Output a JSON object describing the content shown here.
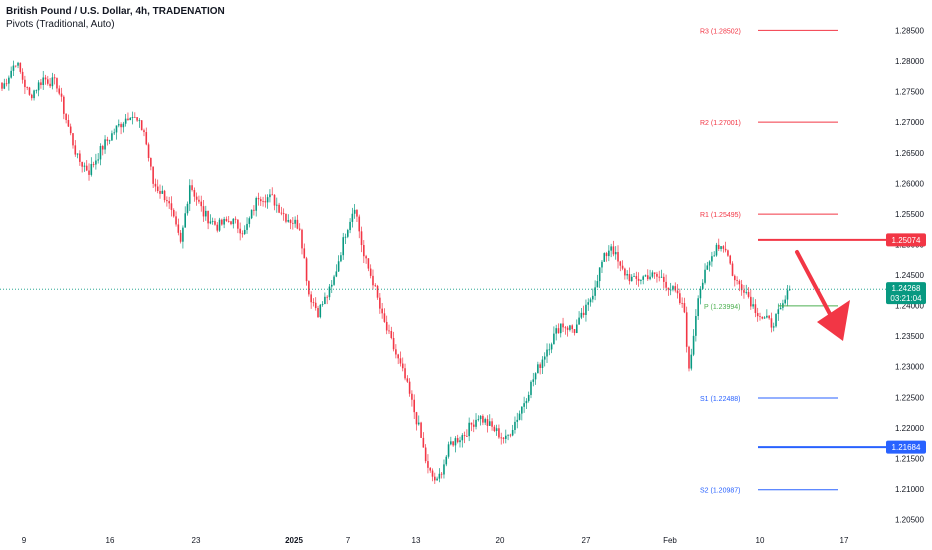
{
  "header": {
    "title": "British Pound / U.S. Dollar, 4h, TRADENATION",
    "indicator": "Pivots (Traditional, Auto)"
  },
  "colors": {
    "up": "#089981",
    "down": "#f23645",
    "resistance": "#f23645",
    "support": "#2962ff",
    "pivot": "#4caf50",
    "price_badge": "#089981",
    "arrow": "#f23645"
  },
  "chart_data": {
    "type": "candlestick",
    "symbol": "GBPUSD",
    "timeframe": "4h",
    "ylim": [
      1.2025,
      1.2895
    ],
    "y_ticks": [
      "1.28500",
      "1.28000",
      "1.27500",
      "1.27000",
      "1.26500",
      "1.26000",
      "1.25500",
      "1.25000",
      "1.24500",
      "1.24000",
      "1.23500",
      "1.23000",
      "1.22500",
      "1.22000",
      "1.21500",
      "1.21000",
      "1.20500"
    ],
    "x_ticks": [
      "9",
      "16",
      "23",
      "2025",
      "7",
      "13",
      "20",
      "27",
      "Feb",
      "10",
      "17"
    ],
    "close_anchors": [
      [
        0,
        1.2755
      ],
      [
        6,
        1.28
      ],
      [
        12,
        1.2742
      ],
      [
        18,
        1.2772
      ],
      [
        24,
        1.2762
      ],
      [
        28,
        1.2705
      ],
      [
        33,
        1.264
      ],
      [
        38,
        1.262
      ],
      [
        44,
        1.266
      ],
      [
        50,
        1.269
      ],
      [
        56,
        1.2715
      ],
      [
        62,
        1.2685
      ],
      [
        66,
        1.26
      ],
      [
        72,
        1.2575
      ],
      [
        78,
        1.25
      ],
      [
        82,
        1.26
      ],
      [
        88,
        1.255
      ],
      [
        94,
        1.253
      ],
      [
        100,
        1.254
      ],
      [
        106,
        1.252
      ],
      [
        112,
        1.258
      ],
      [
        118,
        1.2575
      ],
      [
        124,
        1.2545
      ],
      [
        130,
        1.253
      ],
      [
        134,
        1.242
      ],
      [
        138,
        1.239
      ],
      [
        144,
        1.243
      ],
      [
        150,
        1.252
      ],
      [
        154,
        1.2565
      ],
      [
        158,
        1.248
      ],
      [
        162,
        1.244
      ],
      [
        166,
        1.238
      ],
      [
        170,
        1.234
      ],
      [
        176,
        1.228
      ],
      [
        182,
        1.22
      ],
      [
        186,
        1.213
      ],
      [
        190,
        1.211
      ],
      [
        196,
        1.2175
      ],
      [
        202,
        1.219
      ],
      [
        208,
        1.222
      ],
      [
        214,
        1.22
      ],
      [
        220,
        1.218
      ],
      [
        226,
        1.2225
      ],
      [
        232,
        1.228
      ],
      [
        238,
        1.233
      ],
      [
        244,
        1.237
      ],
      [
        250,
        1.236
      ],
      [
        256,
        1.24
      ],
      [
        262,
        1.247
      ],
      [
        266,
        1.25
      ],
      [
        270,
        1.246
      ],
      [
        276,
        1.244
      ],
      [
        282,
        1.245
      ],
      [
        288,
        1.2445
      ],
      [
        294,
        1.242
      ],
      [
        298,
        1.239
      ],
      [
        300,
        1.229
      ],
      [
        304,
        1.242
      ],
      [
        308,
        1.246
      ],
      [
        312,
        1.25
      ],
      [
        316,
        1.2495
      ],
      [
        320,
        1.244
      ],
      [
        324,
        1.243
      ],
      [
        328,
        1.24
      ],
      [
        332,
        1.238
      ],
      [
        336,
        1.237
      ],
      [
        340,
        1.239
      ],
      [
        344,
        1.2427
      ]
    ],
    "last_price": "1.24268",
    "countdown": "03:21:04",
    "levels": [
      {
        "label": "R3 (1.28502)",
        "value": 1.28502,
        "kind": "resistance"
      },
      {
        "label": "R2 (1.27001)",
        "value": 1.27001,
        "kind": "resistance"
      },
      {
        "label": "R1 (1.25495)",
        "value": 1.25495,
        "kind": "resistance"
      },
      {
        "label": "P (1.23994)",
        "value": 1.23994,
        "kind": "pivot"
      },
      {
        "label": "S1 (1.22488)",
        "value": 1.22488,
        "kind": "support"
      },
      {
        "label": "S2 (1.20987)",
        "value": 1.20987,
        "kind": "support"
      }
    ],
    "key_levels": [
      {
        "value": 1.25074,
        "label": "1.25074",
        "kind": "resistance"
      },
      {
        "value": 1.21684,
        "label": "1.21684",
        "kind": "support"
      }
    ]
  }
}
